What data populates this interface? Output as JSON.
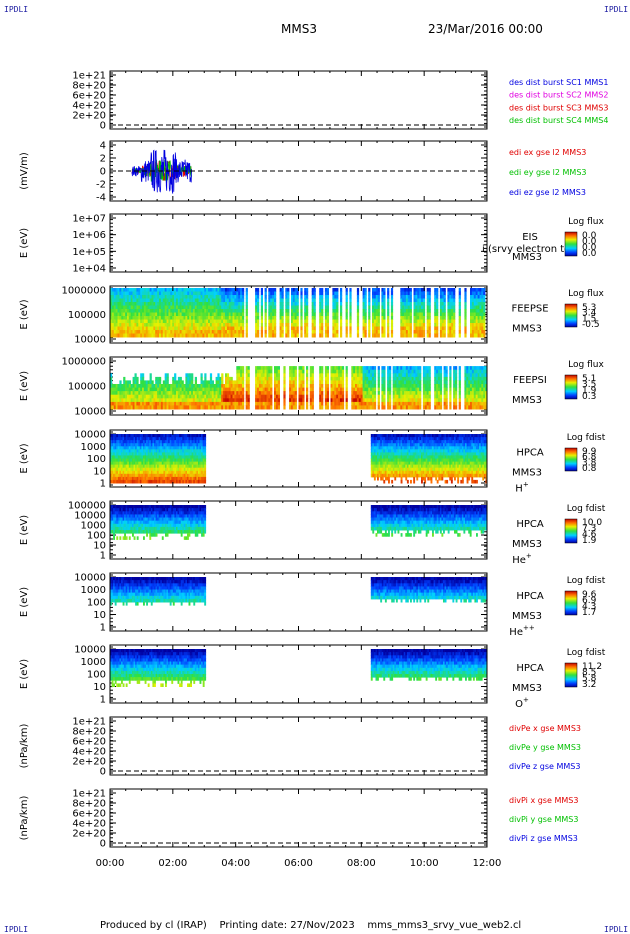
{
  "corner_tag": "IPDLI",
  "header": {
    "title": "MMS3",
    "datetime": "23/Mar/2016 00:00"
  },
  "footer": {
    "produced_by": "Produced by cl (IRAP)",
    "printing_date": "Printing date: 27/Nov/2023",
    "script_name": "mms_mms3_srvy_vue_web2.cl"
  },
  "colors": {
    "red": "#e00000",
    "magenta": "#e000e0",
    "green": "#00c000",
    "blue": "#0000e0",
    "black": "#000000"
  },
  "chart_data": [
    {
      "type": "line",
      "id": "des",
      "ytick_labels": [
        "1e+21",
        "8e+20",
        "6e+20",
        "4e+20",
        "2e+20",
        "0"
      ],
      "ylabel": "",
      "series": [
        {
          "name": "des dist burst SC1 MMS1",
          "color": "#0000e0"
        },
        {
          "name": "des dist burst SC2 MMS2",
          "color": "#e000e0"
        },
        {
          "name": "des dist burst SC3 MMS3",
          "color": "#e00000"
        },
        {
          "name": "des dist burst SC4 MMS4",
          "color": "#00c000"
        }
      ],
      "data": "empty",
      "zero_line": "dashed"
    },
    {
      "type": "line",
      "id": "edi",
      "ytick_labels": [
        "4",
        "2",
        "0",
        "-2",
        "-4"
      ],
      "ylim": [
        -4.5,
        4.5
      ],
      "ylabel": "(mV/m)",
      "series": [
        {
          "name": "edi ex gse l2 MMS3",
          "color": "#e00000"
        },
        {
          "name": "edi ey gse l2 MMS3",
          "color": "#00c000"
        },
        {
          "name": "edi ez gse l2 MMS3",
          "color": "#0000e0"
        }
      ],
      "x_extent_hours": [
        0.7,
        2.6
      ],
      "zero_line": "dashed"
    },
    {
      "type": "heatmap",
      "id": "eis",
      "ytick_labels": [
        "1e+07",
        "1e+06",
        "1e+05",
        "1e+04"
      ],
      "ylabel": "E (eV)",
      "instrument": "EIS",
      "spacecraft": "MMS3",
      "overlay_text": "i (srvy electron to",
      "colorbar": {
        "title": "Log flux",
        "ticks": [
          "0.0",
          "0.0",
          "0.0",
          "0.0"
        ]
      },
      "data": "empty"
    },
    {
      "type": "heatmap",
      "id": "feepse",
      "ytick_labels": [
        "1000000",
        "100000",
        "10000"
      ],
      "ylabel": "E (eV)",
      "instrument": "FEEPSE",
      "spacecraft": "MMS3",
      "colorbar": {
        "title": "Log flux",
        "ticks": [
          "5.3",
          "3.4",
          "1.5",
          "-0.5"
        ]
      }
    },
    {
      "type": "heatmap",
      "id": "feepsi",
      "ytick_labels": [
        "1000000",
        "100000",
        "10000"
      ],
      "ylabel": "E (eV)",
      "instrument": "FEEPSI",
      "spacecraft": "MMS3",
      "colorbar": {
        "title": "Log flux",
        "ticks": [
          "5.1",
          "3.5",
          "1.9",
          "0.3"
        ]
      }
    },
    {
      "type": "heatmap",
      "id": "hpca-h",
      "ytick_labels": [
        "10000",
        "1000",
        "100",
        "10",
        "1"
      ],
      "ylabel": "E (eV)",
      "instrument": "HPCA",
      "spacecraft": "MMS3",
      "species": "H",
      "charge": "+",
      "colorbar": {
        "title": "Log fdist",
        "ticks": [
          "9.9",
          "6.8",
          "3.8",
          "0.8"
        ]
      },
      "data_ranges_hours": [
        [
          0.0,
          3.0
        ],
        [
          8.3,
          12.0
        ]
      ]
    },
    {
      "type": "heatmap",
      "id": "hpca-he",
      "ytick_labels": [
        "100000",
        "10000",
        "1000",
        "100",
        "10",
        "1"
      ],
      "ylabel": "E (eV)",
      "instrument": "HPCA",
      "spacecraft": "MMS3",
      "species": "He",
      "charge": "+",
      "colorbar": {
        "title": "Log fdist",
        "ticks": [
          "10.0",
          "7.3",
          "4.6",
          "1.9"
        ]
      },
      "data_ranges_hours": [
        [
          0.0,
          3.0
        ],
        [
          8.3,
          12.0
        ]
      ]
    },
    {
      "type": "heatmap",
      "id": "hpca-hepp",
      "ytick_labels": [
        "10000",
        "1000",
        "100",
        "10",
        "1"
      ],
      "ylabel": "E (eV)",
      "instrument": "HPCA",
      "spacecraft": "MMS3",
      "species": "He",
      "charge": "++",
      "colorbar": {
        "title": "Log fdist",
        "ticks": [
          "9.6",
          "6.9",
          "4.3",
          "1.7"
        ]
      },
      "data_ranges_hours": [
        [
          0.0,
          3.0
        ],
        [
          8.3,
          12.0
        ]
      ]
    },
    {
      "type": "heatmap",
      "id": "hpca-o",
      "ytick_labels": [
        "10000",
        "1000",
        "100",
        "10",
        "1"
      ],
      "ylabel": "E (eV)",
      "instrument": "HPCA",
      "spacecraft": "MMS3",
      "species": "O",
      "charge": "+",
      "colorbar": {
        "title": "Log fdist",
        "ticks": [
          "11.2",
          "8.5",
          "5.8",
          "3.2"
        ]
      },
      "data_ranges_hours": [
        [
          0.0,
          3.0
        ],
        [
          8.3,
          12.0
        ]
      ]
    },
    {
      "type": "line",
      "id": "divpe",
      "ytick_labels": [
        "1e+21",
        "8e+20",
        "6e+20",
        "4e+20",
        "2e+20",
        "0"
      ],
      "ylabel": "(nPa/km)",
      "series": [
        {
          "name": "divPe x gse MMS3",
          "color": "#e00000"
        },
        {
          "name": "divPe y gse MMS3",
          "color": "#00c000"
        },
        {
          "name": "divPe z gse MMS3",
          "color": "#0000e0"
        }
      ],
      "data": "empty",
      "zero_line": "dashed"
    },
    {
      "type": "line",
      "id": "divpi",
      "ytick_labels": [
        "1e+21",
        "8e+20",
        "6e+20",
        "4e+20",
        "2e+20",
        "0"
      ],
      "ylabel": "(nPa/km)",
      "series": [
        {
          "name": "divPi x gse MMS3",
          "color": "#e00000"
        },
        {
          "name": "divPi y gse MMS3",
          "color": "#00c000"
        },
        {
          "name": "divPi z gse MMS3",
          "color": "#0000e0"
        }
      ],
      "data": "empty",
      "zero_line": "dashed"
    }
  ],
  "x_axis": {
    "ticks": [
      "00:00",
      "02:00",
      "04:00",
      "06:00",
      "08:00",
      "10:00",
      "12:00"
    ],
    "range_hours": [
      0,
      12
    ]
  }
}
